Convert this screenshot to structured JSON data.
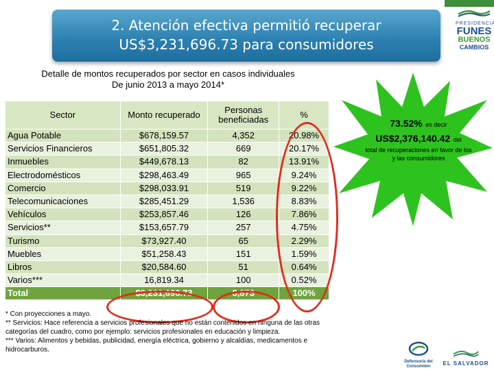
{
  "banner": {
    "line1": "2. Atención efectiva permitió recuperar",
    "line2": "US$3,231,696.73 para consumidores"
  },
  "logo_top": {
    "pres": "PRESIDENCIA",
    "funes": "FUNES",
    "buenos": "BUENOS",
    "cambios": "CAMBIOS"
  },
  "table_title": {
    "line1": "Detalle de montos recuperados por sector en casos individuales",
    "line2": "De junio 2013 a mayo 2014*"
  },
  "table": {
    "headers": {
      "sector": "Sector",
      "monto": "Monto recuperado",
      "personas": "Personas beneficiadas",
      "pct": "%"
    },
    "rows": [
      {
        "sector": "Agua Potable",
        "monto": "$678,159.57",
        "personas": "4,352",
        "pct": "20.98%"
      },
      {
        "sector": "Servicios Financieros",
        "monto": "$651,805.32",
        "personas": "669",
        "pct": "20.17%"
      },
      {
        "sector": "Inmuebles",
        "monto": "$449,678.13",
        "personas": "82",
        "pct": "13.91%"
      },
      {
        "sector": "Electrodomésticos",
        "monto": "$298,463.49",
        "personas": "965",
        "pct": "9.24%"
      },
      {
        "sector": "Comercio",
        "monto": "$298,033.91",
        "personas": "519",
        "pct": "9.22%"
      },
      {
        "sector": "Telecomunicaciones",
        "monto": "$285,451.29",
        "personas": "1,536",
        "pct": "8.83%"
      },
      {
        "sector": "Vehículos",
        "monto": "$253,857.46",
        "personas": "126",
        "pct": "7.86%"
      },
      {
        "sector": "Servicios**",
        "monto": "$153,657.79",
        "personas": "257",
        "pct": "4.75%"
      },
      {
        "sector": "Turismo",
        "monto": "$73,927.40",
        "personas": "65",
        "pct": "2.29%"
      },
      {
        "sector": "Muebles",
        "monto": "$51,258.43",
        "personas": "151",
        "pct": "1.59%"
      },
      {
        "sector": "Libros",
        "monto": "$20,584.60",
        "personas": "51",
        "pct": "0.64%"
      },
      {
        "sector": "Varios***",
        "monto": "16,819.34",
        "personas": "100",
        "pct": "0.52%"
      }
    ],
    "total": {
      "sector": "Total",
      "monto": "$3,231,696.73",
      "personas": "8,873",
      "pct": "100%"
    }
  },
  "notes": {
    "n1": "* Con proyecciones a mayo.",
    "n2": "** Servicios: Hace referencia a servicios profesionales que no están contenidos en ninguna de las otras categorías del cuadro, como por ejemplo: servicios profesionales en educación y limpieza.",
    "n3": "*** Varios: Alimentos y bebidas, publicidad, energía eléctrica, gobierno y alcaldías, medicamentos e hidrocarburos."
  },
  "burst": {
    "pct": "73.52%",
    "es_decir": "es decir",
    "amount": "US$2,376,140.42",
    "del": "del",
    "desc": "total de recuperaciones en favor de los y las consumidores"
  },
  "logo_bottom": {
    "defensoria": "Defensoría del Consumidor",
    "el_salvador": "EL SALVADOR"
  },
  "colors": {
    "banner": "#2b7fb0",
    "table_header": "#d8e7c3",
    "total_row": "#6fa33e",
    "burst": "#2ec21e",
    "oval": "#e22b1b"
  }
}
